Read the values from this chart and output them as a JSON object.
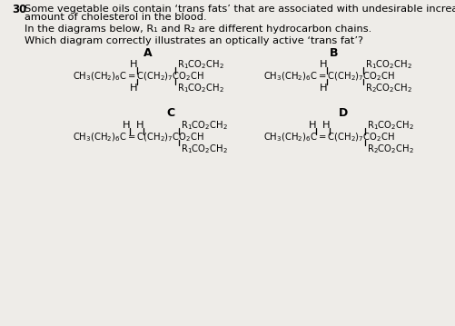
{
  "bg_color": "#eeece8",
  "title_num": "30",
  "title_text1": "Some vegetable oils contain ‘trans fats’ that are associated with undesirable increases",
  "title_text2": "amount of cholesterol in the blood.",
  "subtitle1": "In the diagrams below, R₁ and R₂ are different hydrocarbon chains.",
  "subtitle2": "Which diagram correctly illustrates an optically active ‘trans fat’?",
  "label_A": "A",
  "label_B": "B",
  "label_C": "C",
  "label_D": "D"
}
